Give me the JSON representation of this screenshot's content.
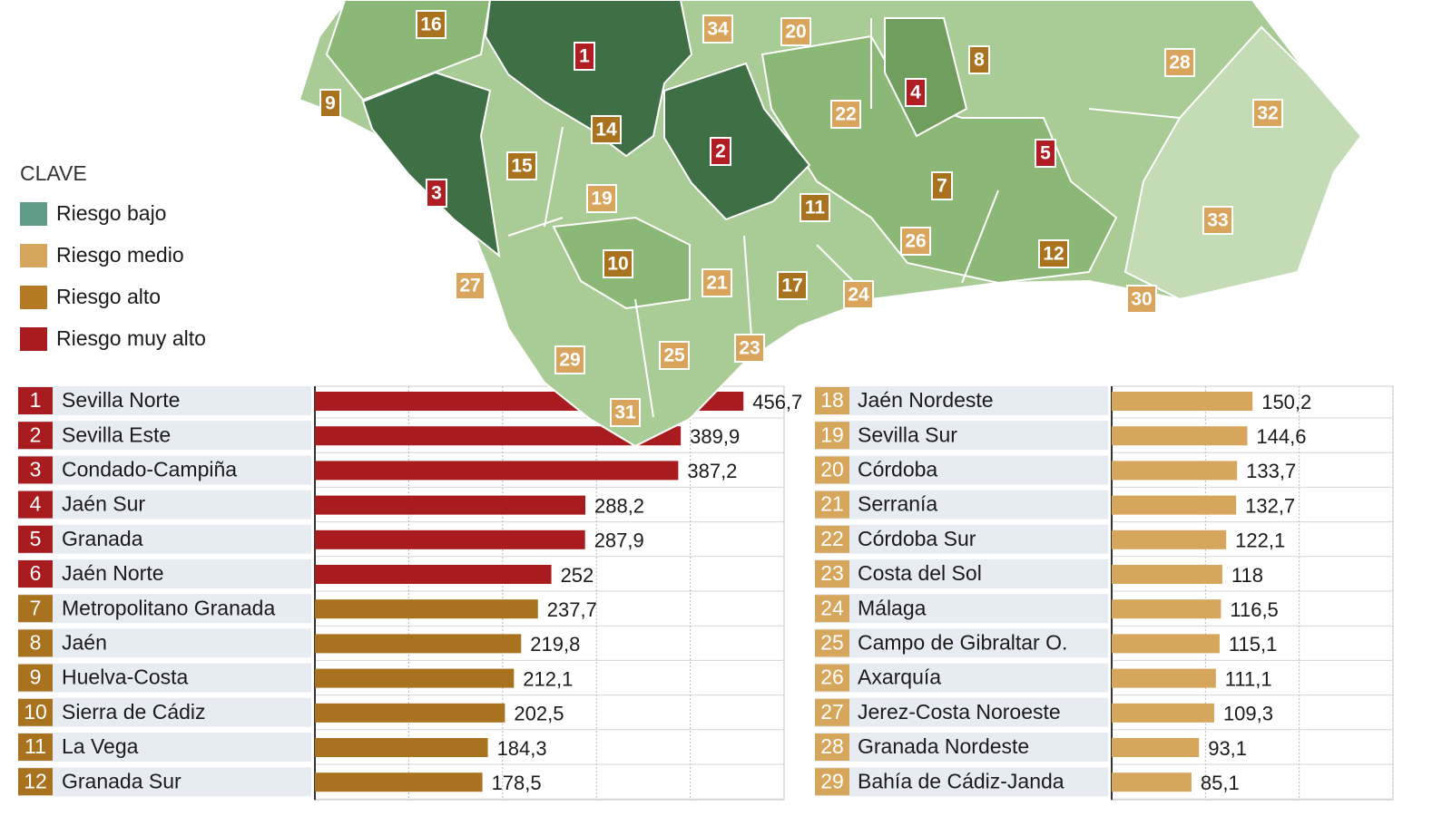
{
  "legend": {
    "title": "CLAVE",
    "items": [
      {
        "label": "Riesgo bajo",
        "color": "#5f9b87"
      },
      {
        "label": "Riesgo medio",
        "color": "#d6a65c"
      },
      {
        "label": "Riesgo alto",
        "color": "#b57b24"
      },
      {
        "label": "Riesgo muy alto",
        "color": "#a81c1f"
      }
    ]
  },
  "map": {
    "labels": [
      {
        "text": "16",
        "color": "#a8721f"
      },
      {
        "text": "34",
        "color": "#d9a55c"
      },
      {
        "text": "20",
        "color": "#d9a55c"
      },
      {
        "text": "1",
        "color": "#b01e23"
      },
      {
        "text": "8",
        "color": "#a8721f"
      },
      {
        "text": "28",
        "color": "#d9a55c"
      },
      {
        "text": "9",
        "color": "#a8721f"
      },
      {
        "text": "4",
        "color": "#b01e23"
      },
      {
        "text": "22",
        "color": "#d9a55c"
      },
      {
        "text": "32",
        "color": "#d9a55c"
      },
      {
        "text": "14",
        "color": "#a8721f"
      },
      {
        "text": "2",
        "color": "#b01e23"
      },
      {
        "text": "5",
        "color": "#b01e23"
      },
      {
        "text": "15",
        "color": "#a8721f"
      },
      {
        "text": "3",
        "color": "#b01e23"
      },
      {
        "text": "7",
        "color": "#a8721f"
      },
      {
        "text": "19",
        "color": "#d9a55c"
      },
      {
        "text": "11",
        "color": "#a8721f"
      },
      {
        "text": "33",
        "color": "#d9a55c"
      },
      {
        "text": "26",
        "color": "#d9a55c"
      },
      {
        "text": "12",
        "color": "#a8721f"
      },
      {
        "text": "10",
        "color": "#a8721f"
      },
      {
        "text": "27",
        "color": "#d9a55c"
      },
      {
        "text": "21",
        "color": "#d9a55c"
      },
      {
        "text": "17",
        "color": "#a8721f"
      },
      {
        "text": "24",
        "color": "#d9a55c"
      },
      {
        "text": "30",
        "color": "#d9a55c"
      },
      {
        "text": "25",
        "color": "#d9a55c"
      },
      {
        "text": "23",
        "color": "#d9a55c"
      },
      {
        "text": "29",
        "color": "#d9a55c"
      },
      {
        "text": "31",
        "color": "#d9a55c"
      }
    ]
  },
  "chart_data": [
    {
      "type": "bar",
      "orientation": "horizontal",
      "ranks": [
        1,
        2,
        3,
        4,
        5,
        6,
        7,
        8,
        9,
        10,
        11,
        12
      ],
      "categories": [
        "Sevilla Norte",
        "Sevilla Este",
        "Condado-Campiña",
        "Jaén Sur",
        "Granada",
        "Jaén Norte",
        "Metropolitano Granada",
        "Jaén",
        "Huelva-Costa",
        "Sierra de Cádiz",
        "La Vega",
        "Granada Sur"
      ],
      "values": [
        456.7,
        389.9,
        387.2,
        288.2,
        287.9,
        252,
        237.7,
        219.8,
        212.1,
        202.5,
        184.3,
        178.5
      ],
      "value_labels": [
        "456,7",
        "389,9",
        "387,2",
        "288,2",
        "287,9",
        "252",
        "237,7",
        "219,8",
        "212,1",
        "202,5",
        "184,3",
        "178,5"
      ],
      "colors": [
        "#a81c1f",
        "#a81c1f",
        "#a81c1f",
        "#a81c1f",
        "#a81c1f",
        "#a81c1f",
        "#a8721f",
        "#a8721f",
        "#a8721f",
        "#a8721f",
        "#a8721f",
        "#a8721f"
      ],
      "xlim": [
        0,
        500
      ],
      "xticks": [
        0,
        100,
        200,
        300,
        400,
        500
      ],
      "grid": true
    },
    {
      "type": "bar",
      "orientation": "horizontal",
      "ranks": [
        18,
        19,
        20,
        21,
        22,
        23,
        24,
        25,
        26,
        27,
        28,
        29
      ],
      "categories": [
        "Jaén Nordeste",
        "Sevilla Sur",
        "Córdoba",
        "Serranía",
        "Córdoba Sur",
        "Costa del Sol",
        "Málaga",
        "Campo de Gibraltar O.",
        "Axarquía",
        "Jerez-Costa Noroeste",
        "Granada Nordeste",
        "Bahía de Cádiz-Janda"
      ],
      "values": [
        150.2,
        144.6,
        133.7,
        132.7,
        122.1,
        118,
        116.5,
        115.1,
        111.1,
        109.3,
        93.1,
        85.1
      ],
      "value_labels": [
        "150,2",
        "144,6",
        "133,7",
        "132,7",
        "122,1",
        "118",
        "116,5",
        "115,1",
        "111,1",
        "109,3",
        "93,1",
        "85,1"
      ],
      "colors": [
        "#d6a65c",
        "#d6a65c",
        "#d6a65c",
        "#d6a65c",
        "#d6a65c",
        "#d6a65c",
        "#d6a65c",
        "#d6a65c",
        "#d6a65c",
        "#d6a65c",
        "#d6a65c",
        "#d6a65c"
      ],
      "xlim": [
        0,
        300
      ],
      "xticks": [
        0,
        100,
        200,
        300
      ],
      "grid": true
    }
  ]
}
